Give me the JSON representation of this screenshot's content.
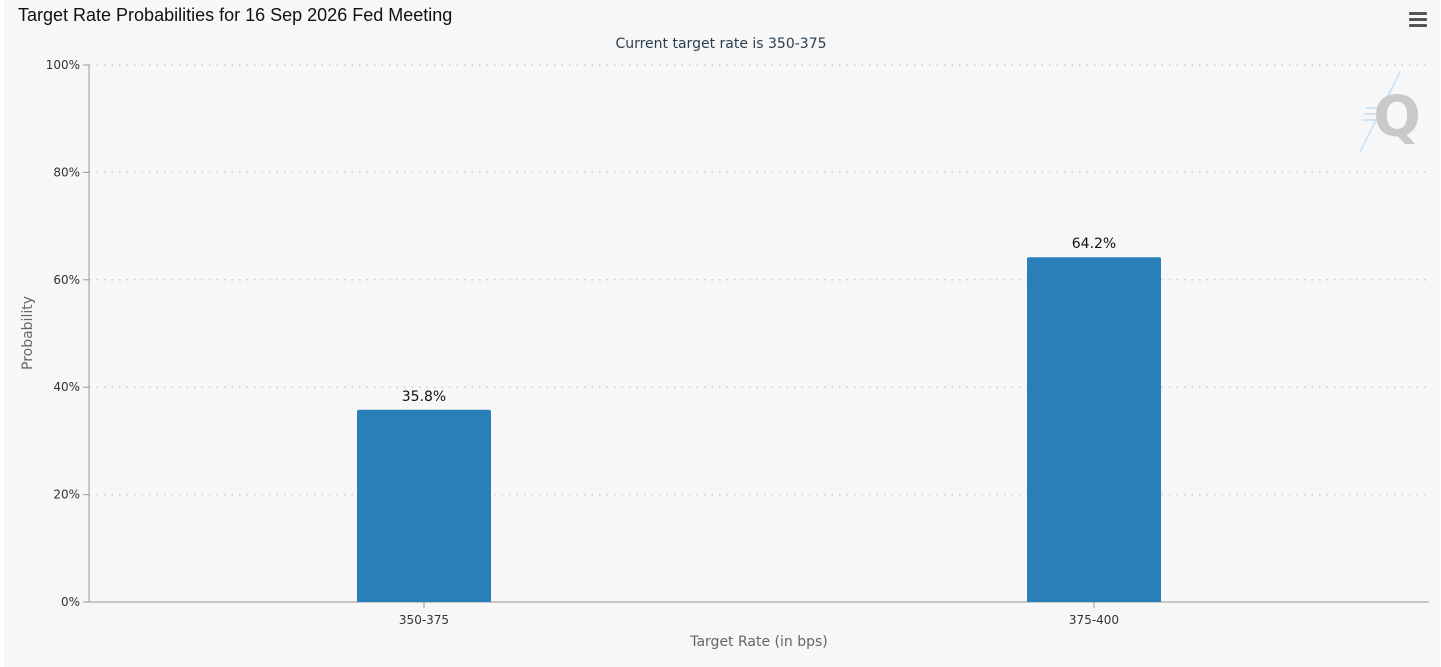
{
  "title": "Target Rate Probabilities for 16 Sep 2026 Fed Meeting",
  "menu_icon": "hamburger-menu-icon",
  "watermark_icon": "q-logo-icon",
  "colors": {
    "bar": "#2a7fb8",
    "grid": "#cccccc",
    "axis": "#999999",
    "text": "#333333",
    "subtitle": "#2b3e50"
  },
  "chart_data": {
    "type": "bar",
    "title": "Target Rate Probabilities for 16 Sep 2026 Fed Meeting",
    "subtitle": "Current target rate is 350-375",
    "xlabel": "Target Rate (in bps)",
    "ylabel": "Probability",
    "categories": [
      "350-375",
      "375-400"
    ],
    "values": [
      35.8,
      64.2
    ],
    "data_labels": [
      "35.8%",
      "64.2%"
    ],
    "ylim": [
      0,
      100
    ],
    "yticks": [
      0,
      20,
      40,
      60,
      80,
      100
    ],
    "ytick_labels": [
      "0%",
      "20%",
      "40%",
      "60%",
      "80%",
      "100%"
    ],
    "grid": true,
    "legend": "none"
  }
}
